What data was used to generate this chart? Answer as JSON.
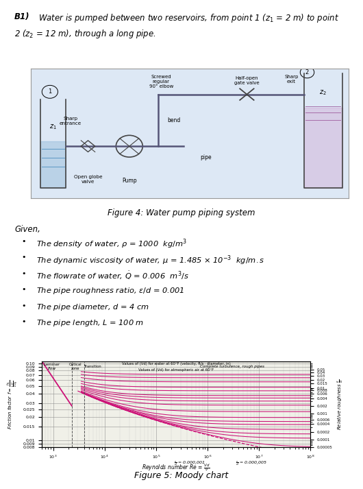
{
  "figure4_caption": "Figure 4: Water pump piping system",
  "given_label": "Given,",
  "figure5_caption": "Figure 5: Moody chart",
  "bg_color": "#ffffff",
  "diagram_bg": "#dde8f5",
  "moody_line_color": "#cc1177"
}
